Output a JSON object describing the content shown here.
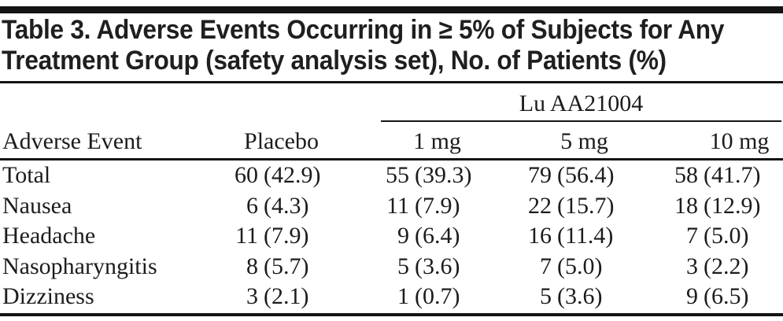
{
  "title": {
    "line1": "Table 3. Adverse Events Occurring in ≥ 5% of Subjects for Any",
    "line2": "Treatment Group (safety analysis set), No. of Patients (%)"
  },
  "table": {
    "group_header": "Lu AA21004",
    "columns": [
      "Adverse Event",
      "Placebo",
      "1 mg",
      "5 mg",
      "10 mg"
    ],
    "rows": [
      {
        "label": "Total",
        "cells": [
          {
            "n": "60",
            "p": "(42.9)"
          },
          {
            "n": "55",
            "p": "(39.3)"
          },
          {
            "n": "79",
            "p": "(56.4)"
          },
          {
            "n": "58",
            "p": "(41.7)"
          }
        ]
      },
      {
        "label": "Nausea",
        "cells": [
          {
            "n": "6",
            "p": "(4.3)"
          },
          {
            "n": "11",
            "p": "(7.9)"
          },
          {
            "n": "22",
            "p": "(15.7)"
          },
          {
            "n": "18",
            "p": "(12.9)"
          }
        ]
      },
      {
        "label": "Headache",
        "cells": [
          {
            "n": "11",
            "p": "(7.9)"
          },
          {
            "n": "9",
            "p": "(6.4)"
          },
          {
            "n": "16",
            "p": "(11.4)"
          },
          {
            "n": "7",
            "p": "(5.0)"
          }
        ]
      },
      {
        "label": "Nasopharyngitis",
        "cells": [
          {
            "n": "8",
            "p": "(5.7)"
          },
          {
            "n": "5",
            "p": "(3.6)"
          },
          {
            "n": "7",
            "p": "(5.0)"
          },
          {
            "n": "3",
            "p": "(2.2)"
          }
        ]
      },
      {
        "label": "Dizziness",
        "cells": [
          {
            "n": "3",
            "p": "(2.1)"
          },
          {
            "n": "1",
            "p": "(0.7)"
          },
          {
            "n": "5",
            "p": "(3.6)"
          },
          {
            "n": "9",
            "p": "(6.5)"
          }
        ]
      }
    ]
  },
  "colors": {
    "background": "#ffffff",
    "rule": "#141414",
    "text": "#1c1c1c"
  },
  "chart_data": {
    "type": "table",
    "title": "Table 3. Adverse Events Occurring in ≥ 5% of Subjects for Any Treatment Group (safety analysis set), No. of Patients (%)",
    "group_label_over_dose_columns": "Lu AA21004",
    "columns": [
      "Adverse Event",
      "Placebo",
      "1 mg",
      "5 mg",
      "10 mg"
    ],
    "rows": [
      [
        "Total",
        "60 (42.9)",
        "55 (39.3)",
        "79 (56.4)",
        "58 (41.7)"
      ],
      [
        "Nausea",
        "6 (4.3)",
        "11 (7.9)",
        "22 (15.7)",
        "18 (12.9)"
      ],
      [
        "Headache",
        "11 (7.9)",
        "9 (6.4)",
        "16 (11.4)",
        "7 (5.0)"
      ],
      [
        "Nasopharyngitis",
        "8 (5.7)",
        "5 (3.6)",
        "7 (5.0)",
        "3 (2.2)"
      ],
      [
        "Dizziness",
        "3 (2.1)",
        "1 (0.7)",
        "5 (3.6)",
        "9 (6.5)"
      ]
    ]
  }
}
